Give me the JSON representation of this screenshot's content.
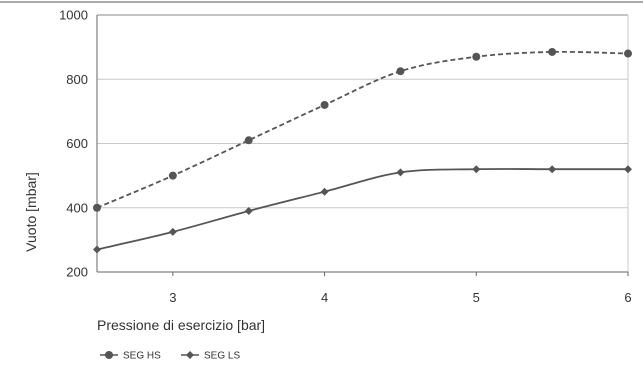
{
  "chart_data": {
    "type": "line",
    "title": "",
    "xlabel": "Pressione di esercizio [bar]",
    "ylabel": "Vuoto [mbar]",
    "xlim": [
      2.5,
      6
    ],
    "ylim": [
      200,
      1000
    ],
    "xticks": [
      3,
      4,
      5,
      6
    ],
    "yticks": [
      200,
      400,
      600,
      800,
      1000
    ],
    "grid": "horizontal",
    "legend_position": "bottom-left",
    "series": [
      {
        "name": "SEG HS",
        "style": "dashed",
        "marker": "circle",
        "color": "#555555",
        "x": [
          2.5,
          3,
          3.5,
          4,
          4.5,
          5,
          5.5,
          6
        ],
        "y": [
          400,
          500,
          610,
          720,
          825,
          870,
          885,
          880
        ]
      },
      {
        "name": "SEG LS",
        "style": "solid",
        "marker": "diamond",
        "color": "#555555",
        "x": [
          2.5,
          3,
          3.5,
          4,
          4.5,
          5,
          5.5,
          6
        ],
        "y": [
          270,
          325,
          390,
          450,
          510,
          520,
          520,
          520
        ]
      }
    ]
  }
}
